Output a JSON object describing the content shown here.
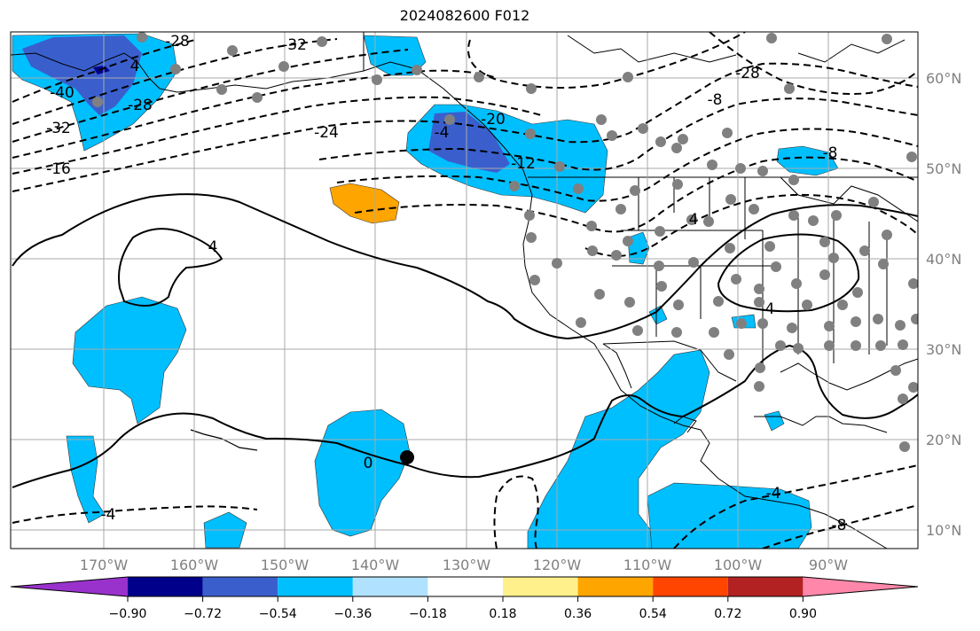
{
  "title": "2024082600 F012",
  "map": {
    "longitude_ticks": [
      "170°W",
      "160°W",
      "150°W",
      "140°W",
      "130°W",
      "120°W",
      "110°W",
      "100°W",
      "90°W"
    ],
    "latitude_ticks": [
      "60°N",
      "50°N",
      "40°N",
      "30°N",
      "20°N",
      "10°N"
    ],
    "contour_labels": [
      "-40",
      "-32",
      "-28",
      "-24",
      "-16",
      "-32",
      "-28",
      "-20",
      "4",
      "4",
      "0",
      "4",
      "-4",
      "-4",
      "4",
      "-8",
      "-8",
      "-8",
      "-12",
      "-28",
      "-4"
    ],
    "station_marker_color": "#808080",
    "storm_marker_color": "#000000",
    "colors": {
      "land_outline": "#000000",
      "gridlines": "#a9a9a9",
      "fill_light_blue": "#00bfff",
      "fill_mid_blue": "#3a5fcd",
      "fill_dark_blue": "#00008b",
      "fill_orange": "#ffa500"
    }
  },
  "colorbar": {
    "tick_labels": [
      "−0.90",
      "−0.72",
      "−0.54",
      "−0.36",
      "−0.18",
      "0.18",
      "0.36",
      "0.54",
      "0.72",
      "0.90"
    ],
    "colors": [
      "#9932cc",
      "#00008b",
      "#3a5fcd",
      "#00bfff",
      "#b0e2ff",
      "#ffffff",
      "#fff08c",
      "#ffa500",
      "#ff4500",
      "#b22222",
      "#ff88aa"
    ]
  }
}
